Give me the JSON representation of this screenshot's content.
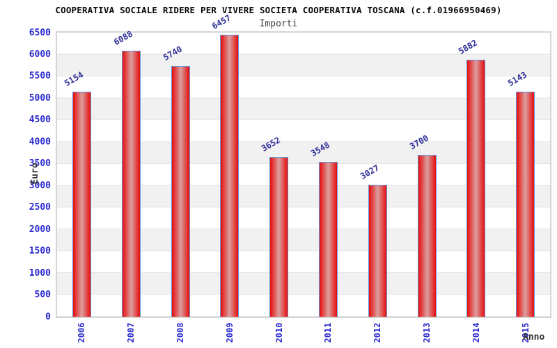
{
  "chart_data": {
    "type": "bar",
    "title": "COOPERATIVA SOCIALE RIDERE PER VIVERE SOCIETA COOPERATIVA TOSCANA (c.f.01966950469)",
    "subtitle": "Importi",
    "xlabel": "Anno",
    "ylabel": "Euro",
    "categories": [
      "2006",
      "2007",
      "2008",
      "2009",
      "2010",
      "2011",
      "2012",
      "2013",
      "2014",
      "2015"
    ],
    "values": [
      5154,
      6088,
      5740,
      6457,
      3652,
      3548,
      3027,
      3700,
      5882,
      5143
    ],
    "ylim": [
      0,
      6500
    ],
    "yticks": [
      0,
      500,
      1000,
      1500,
      2000,
      2500,
      3000,
      3500,
      4000,
      4500,
      5000,
      5500,
      6000,
      6500
    ],
    "legend_position": "none",
    "grid": "alternating horizontal bands every 500 with thin gridlines",
    "colors": {
      "bar_edge": "#e60d0d",
      "bar_center": "#db9f9f",
      "bar_border": "#5f9ce0",
      "tick_label": "#2a2ad0",
      "value_label": "#32329b",
      "band_gray": "#f1f1f1",
      "grid_line": "#e3e3e3",
      "plot_border": "#d5d5d5"
    }
  }
}
